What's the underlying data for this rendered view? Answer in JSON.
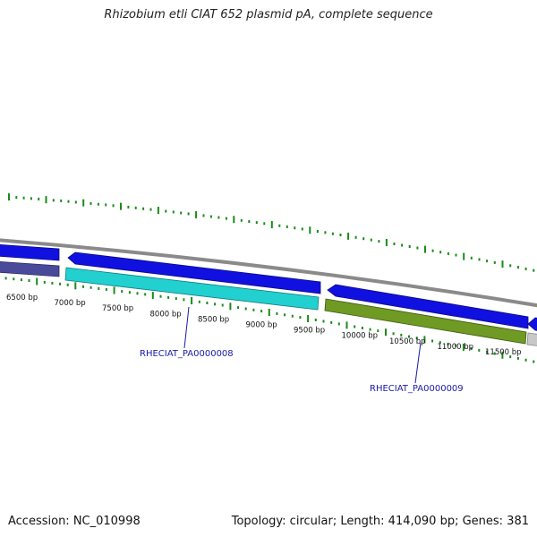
{
  "title": "Rhizobium etli CIAT 652 plasmid pA, complete sequence",
  "footer": {
    "accession": "Accession: NC_010998",
    "summary": "Topology: circular; Length: 414,090 bp; Genes: 381"
  },
  "colors": {
    "backbone": "#8a8a8a",
    "forward_gene": "#1010e0",
    "cds_cyan": "#22d0d0",
    "cds_olive": "#6f9a23",
    "cds_purple": "#4a4a9a",
    "cds_gray": "#c8c8c8",
    "gc_skew": "#1a8a1a",
    "label_blue": "#1a1aa6"
  },
  "position_ticks": [
    "6500 bp",
    "7000 bp",
    "7500 bp",
    "8000 bp",
    "8500 bp",
    "9000 bp",
    "9500 bp",
    "10000 bp",
    "10500 bp",
    "11000 bp",
    "11500 bp"
  ],
  "gene_labels": [
    "RHECIAT_PA0000008",
    "RHECIAT_PA0000009"
  ]
}
